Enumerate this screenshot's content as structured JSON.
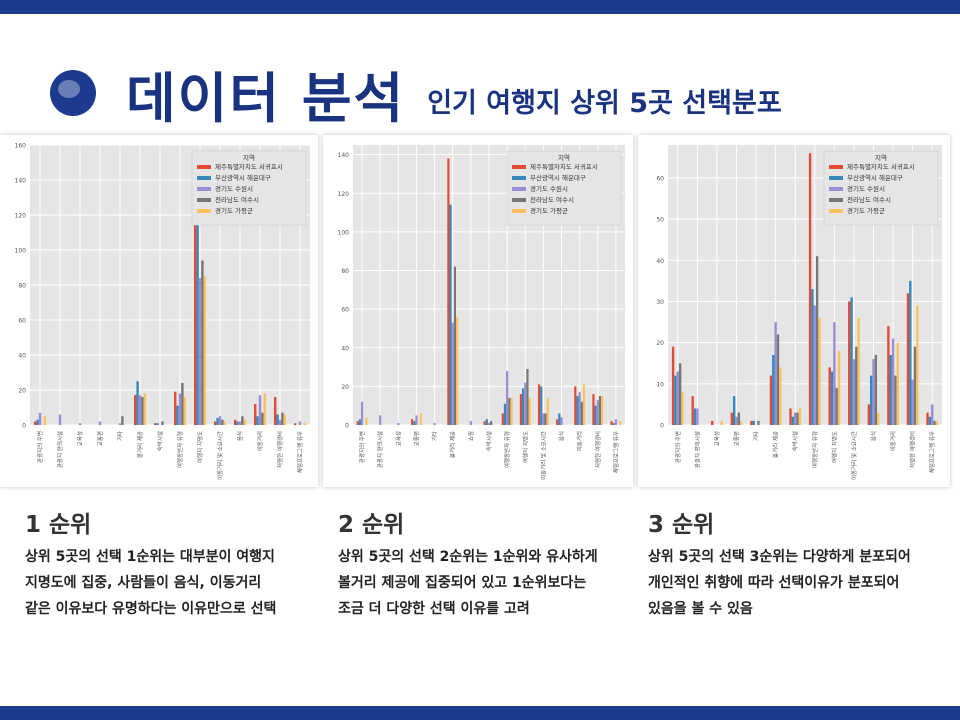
{
  "header": {
    "logo_icon": "globe-dots-icon",
    "title": "데이터 분석",
    "subtitle": "인기 여행지 상위 5곳 선택분포"
  },
  "colors": {
    "accent": "#1a3a8c",
    "title": "#1a3380",
    "series": [
      "#e24a33",
      "#348abd",
      "#988ed5",
      "#777777",
      "#fbc15e"
    ]
  },
  "chart_data": [
    {
      "type": "bar",
      "title": "",
      "legend_title": "지역",
      "legend_position": "top-right",
      "grid": true,
      "categories": [
        "관광지의 주변",
        "관광지 편의시설",
        "교육성",
        "교통편",
        "기타",
        "볼거리 제공",
        "숙박시설",
        "여행동반자 유형",
        "여행지 지명도",
        "이동거리 및 소요시간",
        "음식",
        "이동거리",
        "저렴한 여행경비",
        "체험프로그램 유무"
      ],
      "ylim": [
        0,
        160
      ],
      "yticks": [
        0,
        20,
        40,
        60,
        80,
        100,
        120,
        140,
        160
      ],
      "series": [
        {
          "name": "제주특별자치도 서귀포시",
          "values": [
            2,
            0,
            0,
            0,
            0,
            17,
            1,
            19,
            153,
            2,
            3,
            12,
            16,
            1
          ]
        },
        {
          "name": "부산광역시 해운대구",
          "values": [
            3,
            0,
            0,
            0,
            0,
            25,
            1,
            11,
            139,
            4,
            2,
            5,
            6,
            0
          ]
        },
        {
          "name": "경기도 수원시",
          "values": [
            7,
            6,
            1,
            2,
            1,
            17,
            0,
            18,
            84,
            5,
            2,
            17,
            3,
            2
          ]
        },
        {
          "name": "전라남도 여수시",
          "values": [
            0,
            0,
            0,
            0,
            5,
            16,
            2,
            24,
            94,
            3,
            5,
            7,
            7,
            0
          ]
        },
        {
          "name": "경기도 가평군",
          "values": [
            5,
            0,
            0,
            0,
            0,
            18,
            0,
            16,
            85,
            2,
            3,
            18,
            6,
            1
          ]
        }
      ]
    },
    {
      "type": "bar",
      "title": "",
      "legend_title": "지역",
      "legend_position": "top-right",
      "grid": true,
      "categories": [
        "관광지의 주변",
        "관광지 편의시설",
        "교육성",
        "교통편",
        "기타",
        "볼거리 제공",
        "쇼핑",
        "숙박시설",
        "여행동반자 유형",
        "여행지 지명도",
        "이동거리 및 소요시간",
        "음식",
        "이동거리",
        "저렴한 여행경비",
        "체험프로그램 유무"
      ],
      "ylim": [
        0,
        145
      ],
      "yticks": [
        0,
        20,
        40,
        60,
        80,
        100,
        120,
        140
      ],
      "series": [
        {
          "name": "제주특별자치도 서귀포시",
          "values": [
            2,
            0,
            0,
            3,
            0,
            138,
            0,
            2,
            6,
            16,
            21,
            3,
            20,
            16,
            2
          ]
        },
        {
          "name": "부산광역시 해운대구",
          "values": [
            3,
            0,
            0,
            2,
            0,
            114,
            0,
            3,
            11,
            19,
            20,
            6,
            15,
            10,
            1
          ]
        },
        {
          "name": "경기도 수원시",
          "values": [
            12,
            5,
            1,
            5,
            1,
            53,
            2,
            1,
            28,
            22,
            6,
            4,
            17,
            13,
            3
          ]
        },
        {
          "name": "전라남도 여수시",
          "values": [
            0,
            0,
            0,
            0,
            0,
            82,
            0,
            2,
            14,
            29,
            6,
            0,
            12,
            15,
            0
          ]
        },
        {
          "name": "경기도 가평군",
          "values": [
            4,
            0,
            0,
            6,
            0,
            56,
            0,
            0,
            14,
            14,
            14,
            0,
            21,
            15,
            2
          ]
        }
      ]
    },
    {
      "type": "bar",
      "title": "",
      "legend_title": "지역",
      "legend_position": "top-right",
      "grid": true,
      "categories": [
        "관광지의 주변",
        "관광지 편의시설",
        "교육성",
        "교통편",
        "기타",
        "볼거리 제공",
        "숙박시설",
        "여행동반자 유형",
        "여행지 지명도",
        "이동거리 및 소요시간",
        "음식",
        "이동거리",
        "저렴한 여행경비",
        "체험프로그램 유무"
      ],
      "ylim": [
        0,
        68
      ],
      "yticks": [
        0,
        10,
        20,
        30,
        40,
        50,
        60
      ],
      "series": [
        {
          "name": "제주특별자치도 서귀포시",
          "values": [
            19,
            7,
            1,
            3,
            1,
            12,
            4,
            66,
            14,
            30,
            5,
            24,
            32,
            3
          ]
        },
        {
          "name": "부산광역시 해운대구",
          "values": [
            12,
            4,
            0,
            7,
            1,
            17,
            2,
            33,
            13,
            31,
            12,
            17,
            35,
            2
          ]
        },
        {
          "name": "경기도 수원시",
          "values": [
            13,
            4,
            0,
            2,
            0,
            25,
            3,
            29,
            25,
            16,
            16,
            21,
            11,
            5
          ]
        },
        {
          "name": "전라남도 여수시",
          "values": [
            15,
            0,
            0,
            3,
            1,
            22,
            3,
            41,
            9,
            19,
            17,
            12,
            19,
            1
          ]
        },
        {
          "name": "경기도 가평군",
          "values": [
            8,
            0,
            1,
            1,
            0,
            14,
            4,
            26,
            18,
            26,
            3,
            20,
            29,
            1
          ]
        }
      ]
    }
  ],
  "sections": [
    {
      "rank": "1 순위",
      "desc": [
        "상위 5곳의 선택 1순위는 대부분이 여행지",
        "지명도에 집중, 사람들이 음식, 이동거리",
        "같은 이유보다 유명하다는 이유만으로 선택"
      ]
    },
    {
      "rank": "2 순위",
      "desc": [
        "상위 5곳의 선택 2순위는 1순위와 유사하게",
        "볼거리 제공에 집중되어 있고 1순위보다는",
        "조금 더 다양한 선택 이유를 고려"
      ]
    },
    {
      "rank": "3 순위",
      "desc": [
        "상위 5곳의 선택 3순위는 다양하게 분포되어",
        "개인적인 취향에 따라 선택이유가 분포되어",
        "있음을 볼 수 있음"
      ]
    }
  ]
}
